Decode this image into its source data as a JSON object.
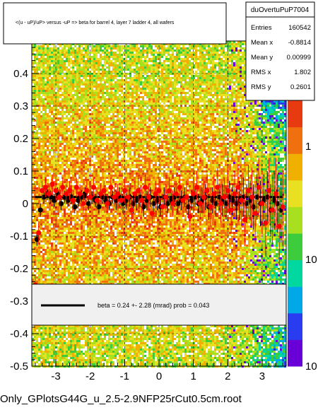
{
  "title": "<(u - uP)/uP> versus -uP => beta for barrel 4, layer 7 ladder 4, all wafers",
  "stats": {
    "name": "duOvertuPuP7004",
    "rows": [
      {
        "label": "Entries",
        "value": "160542"
      },
      {
        "label": "Mean x",
        "value": "-0.8814"
      },
      {
        "label": "Mean y",
        "value": "0.00999"
      },
      {
        "label": "RMS x",
        "value": "1.802"
      },
      {
        "label": "RMS y",
        "value": "0.2601"
      }
    ]
  },
  "fit_legend": "beta =     0.24 +-  2.28 (mrad) prob = 0.043",
  "footer": "Only_GPlotsG44G_u_2.5-2.9NFP25rCut0.5cm.root",
  "colors": {
    "palette": [
      "#6a00d8",
      "#2a3cf0",
      "#00a8e8",
      "#00d8a0",
      "#3ccc3c",
      "#a8e020",
      "#e8e020",
      "#f0b000",
      "#f07010",
      "#e83a10"
    ],
    "black_points": "#000000",
    "red_points": "#ff0000",
    "fit_line": "#000000"
  },
  "chart_data": {
    "type": "heatmap",
    "xlim": [
      -3.7,
      3.7
    ],
    "ylim": [
      -0.5,
      0.5
    ],
    "x_ticks": [
      -3,
      -2,
      -1,
      0,
      1,
      2,
      3
    ],
    "y_ticks": [
      -0.5,
      -0.4,
      -0.3,
      -0.2,
      -0.1,
      0,
      0.1,
      0.2,
      0.3,
      0.4
    ],
    "y_tick_labels": [
      "-0.5",
      "-0.4",
      "-0.3",
      "-0.2",
      "-0.1",
      "0",
      "0.1",
      "0.2",
      "0.3",
      "0.4"
    ],
    "x_tick_labels": [
      "-3",
      "-2",
      "-1",
      "0",
      "1",
      "2",
      "3"
    ],
    "grid": true,
    "colorbar": {
      "scale": "log",
      "labels": [
        "1",
        "10",
        "10"
      ]
    },
    "fit": {
      "x": [
        -3.6,
        3.6
      ],
      "y": [
        0.02,
        0.02
      ]
    },
    "series": [
      {
        "marker": "black",
        "x": [
          -3.55,
          -3.45,
          -3.35,
          -3.25,
          -3.15,
          -3.05,
          -2.95,
          -2.85,
          -2.75,
          -2.65,
          -2.55,
          -2.45,
          -2.35,
          -2.25,
          -2.15,
          -2.05,
          -1.95,
          -1.85,
          -1.75,
          -1.65,
          -1.55,
          -1.45,
          -1.35,
          -1.25,
          -1.15,
          -1.05,
          -0.95,
          -0.85,
          -0.75,
          -0.65,
          -0.55,
          -0.45,
          -0.35,
          -0.25,
          -0.15,
          -0.05,
          0.05,
          0.15,
          0.25,
          0.35,
          0.45,
          0.55,
          0.65,
          0.75,
          0.85,
          0.95,
          1.05,
          1.15,
          1.25,
          1.35,
          1.45,
          1.55,
          1.65,
          1.75,
          1.85,
          1.95,
          2.05,
          2.15,
          2.25,
          2.35,
          2.45,
          2.55,
          2.65,
          2.75,
          2.85,
          2.95,
          3.05,
          3.15,
          3.25,
          3.35,
          3.45,
          3.55
        ],
        "y": [
          -0.11,
          -0.02,
          0.02,
          0.03,
          0.02,
          0.01,
          0.03,
          0.0,
          0.02,
          0.01,
          0.02,
          -0.01,
          0.01,
          0.02,
          0.03,
          0.0,
          0.02,
          0.01,
          -0.01,
          0.02,
          0.01,
          0.0,
          0.02,
          0.01,
          0.02,
          0.0,
          0.01,
          0.02,
          0.0,
          0.01,
          0.02,
          -0.01,
          0.01,
          0.02,
          0.0,
          0.01,
          -0.01,
          0.02,
          0.0,
          0.01,
          0.02,
          0.0,
          0.01,
          0.02,
          -0.01,
          0.01,
          0.02,
          0.0,
          0.01,
          0.02,
          -0.01,
          0.01,
          0.0,
          0.02,
          0.01,
          0.0,
          0.02,
          0.01,
          0.0,
          0.01,
          0.02,
          0.0,
          0.01,
          -0.01,
          0.02,
          0.0,
          0.01,
          0.02,
          -0.02,
          0.01,
          0.0,
          -0.02
        ],
        "err": [
          0.02,
          0.02,
          0.02,
          0.02,
          0.02,
          0.02,
          0.02,
          0.02,
          0.02,
          0.02,
          0.02,
          0.02,
          0.02,
          0.02,
          0.02,
          0.02,
          0.02,
          0.02,
          0.02,
          0.02,
          0.02,
          0.02,
          0.02,
          0.03,
          0.03,
          0.03,
          0.03,
          0.03,
          0.03,
          0.03,
          0.03,
          0.03,
          0.03,
          0.03,
          0.03,
          0.03,
          0.03,
          0.03,
          0.03,
          0.03,
          0.03,
          0.03,
          0.03,
          0.03,
          0.03,
          0.03,
          0.03,
          0.03,
          0.04,
          0.04,
          0.04,
          0.04,
          0.04,
          0.04,
          0.05,
          0.05,
          0.05,
          0.05,
          0.05,
          0.06,
          0.06,
          0.06,
          0.06,
          0.07,
          0.07,
          0.07,
          0.08,
          0.08,
          0.08,
          0.09,
          0.09,
          0.1
        ]
      },
      {
        "marker": "red",
        "x": [
          -3.6,
          -3.5,
          -3.4,
          -3.3,
          -3.2,
          -3.1,
          -3.0,
          -2.9,
          -2.8,
          -2.7,
          -2.6,
          -2.5,
          -2.4,
          -2.3,
          -2.2,
          -2.1,
          -2.0,
          -1.9,
          -1.8,
          -1.7,
          -1.6,
          -1.5,
          -1.4,
          -1.3,
          -1.2,
          -1.1,
          -1.0,
          -0.9,
          -0.8,
          -0.7,
          -0.6,
          -0.5,
          -0.4,
          -0.3,
          -0.2,
          -0.1,
          0.0,
          0.1,
          0.2,
          0.3,
          0.4,
          0.5,
          0.6,
          0.7,
          0.8,
          0.9,
          1.0,
          1.1,
          1.2,
          1.3,
          1.4,
          1.5,
          1.6,
          1.7,
          1.8,
          1.9,
          2.0,
          2.1,
          2.2,
          2.3,
          2.4,
          2.5,
          2.6,
          2.7,
          2.8,
          2.9,
          3.0,
          3.1,
          3.2,
          3.3,
          3.4,
          3.5,
          3.6
        ],
        "y": [
          -0.25,
          -0.09,
          0.04,
          0.05,
          0.03,
          0.06,
          0.04,
          0.02,
          0.05,
          0.03,
          0.04,
          0.01,
          0.05,
          0.03,
          0.0,
          0.04,
          0.02,
          0.05,
          0.01,
          0.03,
          0.04,
          0.0,
          0.05,
          0.02,
          0.03,
          0.01,
          0.04,
          0.02,
          -0.02,
          0.03,
          0.04,
          0.01,
          0.05,
          0.02,
          -0.03,
          0.03,
          0.04,
          -0.01,
          0.02,
          0.04,
          0.0,
          0.03,
          0.05,
          0.01,
          0.02,
          -0.04,
          0.03,
          0.05,
          0.0,
          0.02,
          0.04,
          -0.01,
          0.03,
          0.05,
          0.0,
          0.02,
          0.04,
          -0.02,
          0.03,
          0.05,
          0.01,
          -0.05,
          0.04,
          0.02,
          -0.03,
          0.05,
          0.0,
          -0.06,
          0.04,
          -0.02,
          0.03,
          -0.07,
          -0.01
        ],
        "err": [
          0.03,
          0.03,
          0.03,
          0.03,
          0.03,
          0.03,
          0.03,
          0.03,
          0.03,
          0.03,
          0.03,
          0.03,
          0.03,
          0.03,
          0.03,
          0.03,
          0.03,
          0.03,
          0.03,
          0.03,
          0.03,
          0.03,
          0.03,
          0.03,
          0.03,
          0.03,
          0.04,
          0.04,
          0.04,
          0.04,
          0.04,
          0.04,
          0.04,
          0.04,
          0.04,
          0.04,
          0.04,
          0.04,
          0.04,
          0.04,
          0.04,
          0.04,
          0.04,
          0.05,
          0.05,
          0.05,
          0.05,
          0.05,
          0.05,
          0.05,
          0.05,
          0.06,
          0.06,
          0.06,
          0.06,
          0.06,
          0.07,
          0.07,
          0.07,
          0.07,
          0.08,
          0.08,
          0.08,
          0.09,
          0.09,
          0.09,
          0.1,
          0.1,
          0.1,
          0.11,
          0.11,
          0.12,
          0.12
        ]
      }
    ]
  }
}
